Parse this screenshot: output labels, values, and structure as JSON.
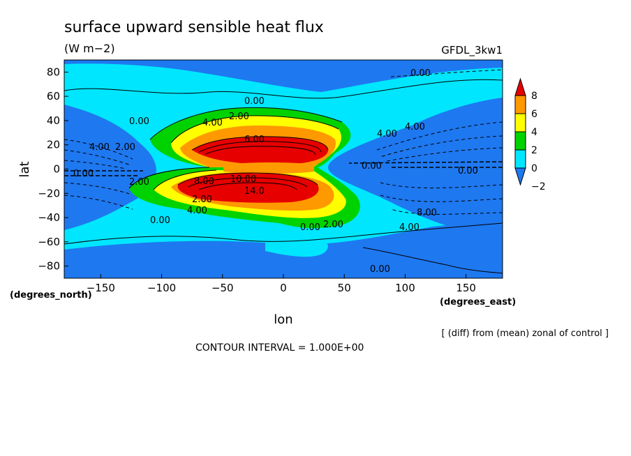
{
  "chart_data": {
    "type": "heatmap",
    "title": "surface upward sensible heat flux",
    "units": "(W m−2)",
    "model": "GFDL_3kw1",
    "xlabel": "lon",
    "ylabel": "lat",
    "x_unit": "(degrees_east)",
    "y_unit": "(degrees_north)",
    "xlim": [
      -180,
      180
    ],
    "ylim": [
      -90,
      90
    ],
    "x_ticks": [
      "−150",
      "−100",
      "−50",
      "0",
      "50",
      "100",
      "150"
    ],
    "x_tick_values": [
      -150,
      -100,
      -50,
      0,
      50,
      100,
      150
    ],
    "y_ticks": [
      "80",
      "60",
      "40",
      "20",
      "0",
      "−20",
      "−40",
      "−60",
      "−80"
    ],
    "y_tick_values": [
      80,
      60,
      40,
      20,
      0,
      -20,
      -40,
      -60,
      -80
    ],
    "colorbar": {
      "labels": [
        "8",
        "6",
        "4",
        "2",
        "0",
        "−2"
      ],
      "levels": [
        8,
        6,
        4,
        2,
        0,
        -2
      ],
      "colors": [
        "#1e78f0",
        "#00e6ff",
        "#00d200",
        "#ffff00",
        "#ff9900",
        "#e60000"
      ]
    },
    "contour_labels": [
      "0.00",
      "0.00",
      "0.00",
      "0.00",
      "0.00",
      "0.00",
      "0.00",
      "0.00",
      "2.00",
      "2.00",
      "2.00",
      "2.00",
      "4.00",
      "4.00",
      "4.00",
      "4.00",
      "4.00",
      "6.00",
      "8.00",
      "8.00",
      "10.00",
      "14.0",
      "0.00",
      "2.00",
      "4.00"
    ],
    "contour_interval": "CONTOUR INTERVAL = 1.000E+00",
    "note": "[ (diff) from (mean) zonal of control ]",
    "grid": false
  }
}
